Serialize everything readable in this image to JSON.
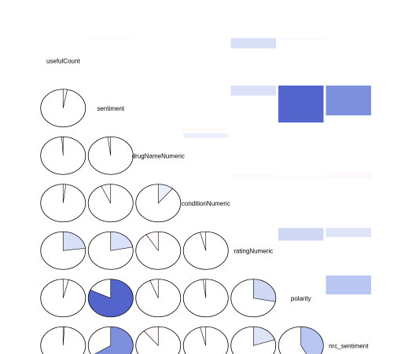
{
  "chart_data": {
    "type": "correlogram",
    "variables": [
      "usefulCount",
      "sentiment",
      "drugNameNumeric",
      "conditionNumeric",
      "ratingNumeric",
      "polarity",
      "nrc_sentiment"
    ],
    "lower_panel": "pie",
    "upper_panel": "shade",
    "diagonal": "variable names",
    "correlations": [
      [
        1.0,
        0.03,
        -0.01,
        0.02,
        0.23,
        0.04,
        0.01
      ],
      [
        0.03,
        1.0,
        -0.02,
        -0.07,
        0.22,
        0.82,
        0.66
      ],
      [
        -0.01,
        -0.02,
        1.0,
        0.11,
        -0.09,
        -0.06,
        -0.11
      ],
      [
        0.02,
        -0.07,
        0.11,
        1.0,
        -0.04,
        -0.02,
        -0.04
      ],
      [
        0.23,
        0.22,
        -0.09,
        -0.04,
        1.0,
        0.28,
        0.2
      ],
      [
        0.04,
        0.82,
        -0.06,
        -0.02,
        0.28,
        1.0,
        0.42
      ],
      [
        0.01,
        0.66,
        -0.11,
        -0.04,
        0.2,
        0.42,
        1.0
      ]
    ],
    "colors": {
      "positive_strong": "#2233bb",
      "positive_light": "#aabbee",
      "negative_strong": "#bb2233",
      "negative_light": "#ffdddd",
      "neutral": "#ffffff",
      "outline": "#000000"
    }
  }
}
